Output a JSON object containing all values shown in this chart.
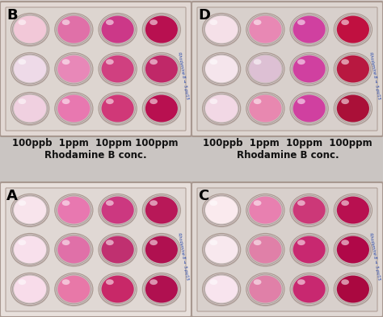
{
  "fig_width": 4.74,
  "fig_height": 3.93,
  "dpi": 100,
  "bg_color": "#d8d0ce",
  "mid_bg_color": "#cdc8c5",
  "text_color": "#111111",
  "annotation_fontsize": 8.5,
  "annotation_fontweight": "bold",
  "label_fontsize": 13,
  "annotation_left_line1": "100ppb  1ppm  10ppm 100ppm",
  "annotation_left_line2": "Rhodamine B conc.",
  "annotation_right_line1": "100ppb  1ppm  10ppm  100ppm",
  "annotation_right_line2": "Rhodamine B conc.",
  "handwriting_color": "#2244aa",
  "panels": [
    {
      "label": "B",
      "col": 0,
      "row": 0,
      "plate_bg": "#e2d8d4",
      "well_bg": "#ddd5d0",
      "well_colors": [
        [
          "#f2c8d8",
          "#e070a8",
          "#cc3888",
          "#b81050"
        ],
        [
          "#eedae8",
          "#e888b8",
          "#d04080",
          "#c02868"
        ],
        [
          "#f0d0e0",
          "#e878b0",
          "#d03878",
          "#b81050"
        ]
      ]
    },
    {
      "label": "D",
      "col": 1,
      "row": 0,
      "plate_bg": "#ddd5d0",
      "well_bg": "#d8d0cc",
      "well_colors": [
        [
          "#f5e0e8",
          "#e888b4",
          "#d040a0",
          "#c01040"
        ],
        [
          "#f5e5ec",
          "#ddc0d4",
          "#d040a0",
          "#b81840"
        ],
        [
          "#f2d8e5",
          "#e888b0",
          "#d040a0",
          "#aa1038"
        ]
      ]
    },
    {
      "label": "A",
      "col": 0,
      "row": 1,
      "plate_bg": "#e8e0dc",
      "well_bg": "#e0d8d4",
      "well_colors": [
        [
          "#f8e4ec",
          "#e878b0",
          "#cc3880",
          "#b81858"
        ],
        [
          "#f8e0ec",
          "#e070a8",
          "#c03070",
          "#b01050"
        ],
        [
          "#f8dcea",
          "#e878a8",
          "#c82868",
          "#b01050"
        ]
      ]
    },
    {
      "label": "C",
      "col": 1,
      "row": 1,
      "plate_bg": "#e0d8d4",
      "well_bg": "#d8d0cc",
      "well_colors": [
        [
          "#faeaee",
          "#e880b0",
          "#cc3878",
          "#b81050"
        ],
        [
          "#f8e8ee",
          "#e080a8",
          "#c82870",
          "#b00848"
        ],
        [
          "#f8e4ee",
          "#e080a8",
          "#c82870",
          "#aa0840"
        ]
      ]
    }
  ]
}
